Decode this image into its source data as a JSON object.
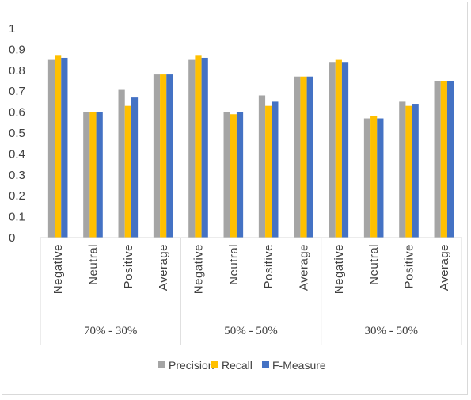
{
  "chart_data": {
    "type": "bar",
    "groups": [
      {
        "label": "70% - 30%",
        "categories": [
          "Negative",
          "Neutral",
          "Positive",
          "Average"
        ]
      },
      {
        "label": "50% - 50%",
        "categories": [
          "Negative",
          "Neutral",
          "Positive",
          "Average"
        ]
      },
      {
        "label": "30% - 50%",
        "categories": [
          "Negative",
          "Neutral",
          "Positive",
          "Average"
        ]
      }
    ],
    "series": [
      {
        "name": "Precision",
        "color": "#a5a5a5",
        "values": [
          0.85,
          0.6,
          0.71,
          0.78,
          0.85,
          0.6,
          0.68,
          0.77,
          0.84,
          0.57,
          0.65,
          0.75
        ]
      },
      {
        "name": "Recall",
        "color": "#ffc000",
        "values": [
          0.87,
          0.6,
          0.63,
          0.78,
          0.87,
          0.59,
          0.63,
          0.77,
          0.85,
          0.58,
          0.63,
          0.75
        ]
      },
      {
        "name": "F-Measure",
        "color": "#4472c4",
        "values": [
          0.86,
          0.6,
          0.67,
          0.78,
          0.86,
          0.6,
          0.65,
          0.77,
          0.84,
          0.57,
          0.64,
          0.75
        ]
      }
    ],
    "ylim": [
      0,
      1
    ],
    "yticks": [
      "0",
      "0.1",
      "0.2",
      "0.3",
      "0.4",
      "0.5",
      "0.6",
      "0.7",
      "0.8",
      "0.9",
      "1"
    ],
    "legend_position": "bottom",
    "grid": false
  }
}
